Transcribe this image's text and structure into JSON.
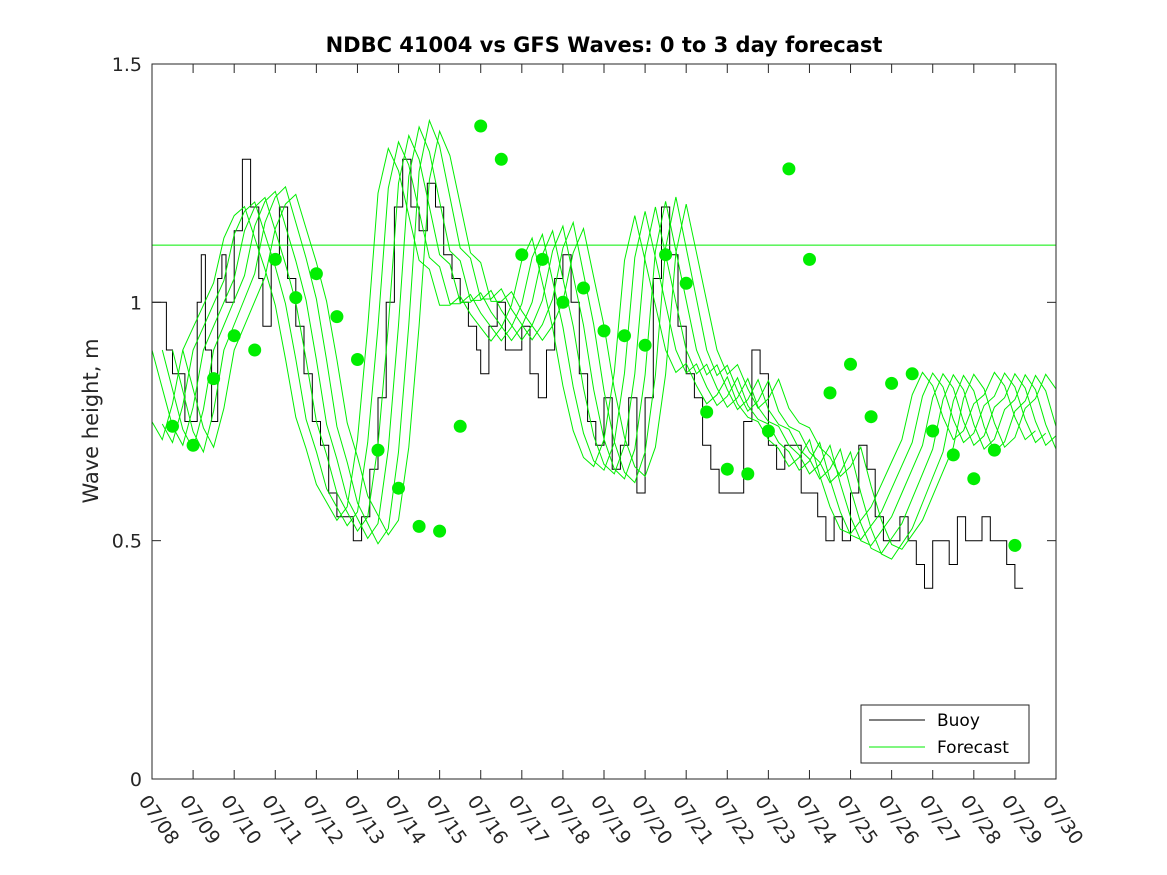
{
  "chart_data": {
    "type": "line",
    "title": "NDBC 41004 vs GFS Waves: 0 to 3 day forecast",
    "xlabel": "",
    "ylabel": "Wave height, m",
    "xlim": [
      "07/08",
      "07/30"
    ],
    "ylim": [
      0,
      1.5
    ],
    "x_tick_labels": [
      "07/08",
      "07/09",
      "07/10",
      "07/11",
      "07/12",
      "07/13",
      "07/14",
      "07/15",
      "07/16",
      "07/17",
      "07/18",
      "07/19",
      "07/20",
      "07/21",
      "07/22",
      "07/23",
      "07/24",
      "07/25",
      "07/26",
      "07/27",
      "07/28",
      "07/29",
      "07/30"
    ],
    "y_ticks": [
      0,
      0.5,
      1,
      1.5
    ],
    "y_tick_labels": [
      "0",
      "0.5",
      "1",
      "1.5"
    ],
    "legend": {
      "position": "bottom-right",
      "entries": [
        "Buoy",
        "Forecast"
      ]
    },
    "colors": {
      "buoy": "#000000",
      "forecast": "#00ee00",
      "marker": "#00ee00"
    },
    "series": [
      {
        "name": "Buoy",
        "x": [
          0,
          0.25,
          0.35,
          0.5,
          0.75,
          0.8,
          1,
          1.1,
          1.2,
          1.3,
          1.45,
          1.6,
          1.7,
          1.8,
          2,
          2.2,
          2.4,
          2.6,
          2.7,
          2.9,
          3.1,
          3.3,
          3.5,
          3.7,
          3.9,
          4.1,
          4.3,
          4.5,
          4.7,
          4.9,
          5.1,
          5.3,
          5.5,
          5.7,
          5.9,
          6.1,
          6.3,
          6.5,
          6.7,
          6.9,
          7.1,
          7.3,
          7.5,
          7.7,
          7.9,
          8,
          8.2,
          8.4,
          8.6,
          8.8,
          9,
          9.2,
          9.4,
          9.6,
          9.8,
          10,
          10.2,
          10.4,
          10.6,
          10.8,
          11,
          11.2,
          11.4,
          11.6,
          11.8,
          12,
          12.2,
          12.4,
          12.6,
          12.8,
          13,
          13.2,
          13.4,
          13.6,
          13.8,
          14,
          14.2,
          14.4,
          14.6,
          14.8,
          15,
          15.2,
          15.4,
          15.6,
          15.8,
          16,
          16.2,
          16.4,
          16.6,
          16.8,
          17,
          17.2,
          17.4,
          17.6,
          17.8,
          18,
          18.2,
          18.4,
          18.6,
          18.8,
          19,
          19.2,
          19.4,
          19.6,
          19.8,
          20,
          20.2,
          20.4,
          20.6,
          20.8,
          21,
          21.2
        ],
        "values": [
          1.0,
          1.0,
          0.9,
          0.85,
          0.85,
          0.75,
          0.75,
          1.0,
          1.1,
          0.9,
          0.75,
          1.05,
          1.1,
          1.0,
          1.15,
          1.3,
          1.2,
          1.05,
          0.95,
          1.1,
          1.2,
          1.05,
          0.95,
          0.85,
          0.75,
          0.7,
          0.6,
          0.55,
          0.55,
          0.5,
          0.55,
          0.65,
          0.8,
          1.0,
          1.2,
          1.3,
          1.2,
          1.15,
          1.25,
          1.2,
          1.1,
          1.05,
          1.0,
          0.95,
          0.9,
          0.85,
          0.95,
          1.0,
          0.9,
          0.9,
          0.95,
          0.85,
          0.8,
          0.9,
          1.05,
          1.1,
          1.0,
          0.85,
          0.75,
          0.7,
          0.8,
          0.65,
          0.7,
          0.8,
          0.6,
          0.8,
          1.05,
          1.2,
          1.1,
          0.95,
          0.85,
          0.8,
          0.7,
          0.65,
          0.6,
          0.6,
          0.6,
          0.75,
          0.9,
          0.85,
          0.7,
          0.65,
          0.7,
          0.7,
          0.6,
          0.6,
          0.55,
          0.5,
          0.55,
          0.5,
          0.6,
          0.7,
          0.65,
          0.55,
          0.5,
          0.5,
          0.55,
          0.5,
          0.45,
          0.4,
          0.5,
          0.5,
          0.45,
          0.55,
          0.5,
          0.5,
          0.55,
          0.5,
          0.5,
          0.45,
          0.4,
          0.4
        ]
      },
      {
        "name": "Forecast",
        "x": [
          0,
          0.5,
          0.75,
          1,
          1.25,
          1.5,
          1.75,
          2,
          2.25,
          2.5,
          2.75,
          3,
          3.25,
          3.5,
          3.75,
          4,
          4.25,
          4.5,
          4.75,
          5,
          5.25,
          5.5,
          5.75,
          6,
          6.25,
          6.5,
          6.75,
          7,
          7.25,
          7.5,
          7.75,
          8,
          8.25,
          8.5,
          8.75,
          9,
          9.25,
          9.5,
          9.75,
          10,
          10.25,
          10.5,
          10.75,
          11,
          11.25,
          11.5,
          11.75,
          12,
          12.25,
          12.5,
          12.75,
          13,
          13.25,
          13.5,
          13.75,
          14,
          14.25,
          14.5,
          14.75,
          15,
          15.25,
          15.5,
          15.75,
          16,
          16.25,
          16.5,
          16.75,
          17,
          17.25,
          17.5,
          17.75,
          18,
          18.25,
          18.5,
          18.75,
          19,
          19.25,
          19.5,
          19.75,
          20,
          20.25,
          20.5,
          20.75,
          21,
          21.25,
          21.5,
          21.75,
          22
        ],
        "values": [
          0.9,
          0.74,
          0.7,
          0.78,
          0.9,
          0.95,
          1.0,
          1.05,
          1.15,
          1.2,
          1.22,
          1.15,
          1.08,
          1.0,
          0.88,
          0.75,
          0.68,
          0.6,
          0.56,
          0.52,
          0.55,
          0.7,
          0.95,
          1.25,
          1.35,
          1.3,
          1.2,
          1.1,
          1.08,
          1.0,
          1.0,
          1.02,
          0.98,
          0.95,
          0.92,
          0.95,
          1.0,
          1.1,
          1.15,
          1.05,
          0.95,
          0.82,
          0.72,
          0.66,
          0.64,
          0.7,
          0.85,
          1.1,
          1.2,
          1.1,
          1.0,
          0.9,
          0.85,
          0.87,
          0.82,
          0.78,
          0.8,
          0.84,
          0.78,
          0.75,
          0.74,
          0.7,
          0.68,
          0.64,
          0.66,
          0.7,
          0.62,
          0.55,
          0.5,
          0.49,
          0.52,
          0.55,
          0.6,
          0.65,
          0.7,
          0.8,
          0.85,
          0.82,
          0.75,
          0.7,
          0.72,
          0.78,
          0.8,
          0.85,
          0.82,
          0.75,
          0.7,
          0.72
        ]
      }
    ],
    "markers": {
      "x": [
        0.5,
        1,
        1.5,
        2,
        2.5,
        3,
        3.5,
        4,
        4.5,
        5,
        5.5,
        6,
        6.5,
        7,
        7.5,
        8,
        8.5,
        9,
        9.5,
        10,
        10.5,
        11,
        11.5,
        12,
        12.5,
        13,
        13.5,
        14,
        14.5,
        15,
        15.5,
        16,
        16.5,
        17,
        17.5,
        18,
        18.5,
        19,
        19.5,
        20,
        20.5,
        21
      ],
      "values": [
        0.74,
        0.7,
        0.84,
        0.93,
        0.9,
        1.09,
        1.01,
        1.06,
        0.97,
        0.88,
        0.69,
        0.61,
        0.53,
        0.52,
        0.74,
        1.37,
        1.3,
        1.1,
        1.09,
        1.0,
        1.03,
        0.94,
        0.93,
        0.91,
        1.1,
        1.04,
        0.77,
        0.65,
        0.64,
        0.73,
        1.28,
        1.09,
        0.81,
        0.87,
        0.76,
        0.83,
        0.85,
        0.73,
        0.68,
        0.63,
        0.69,
        0.49
      ]
    },
    "reference_line": {
      "value": 1.12
    }
  }
}
